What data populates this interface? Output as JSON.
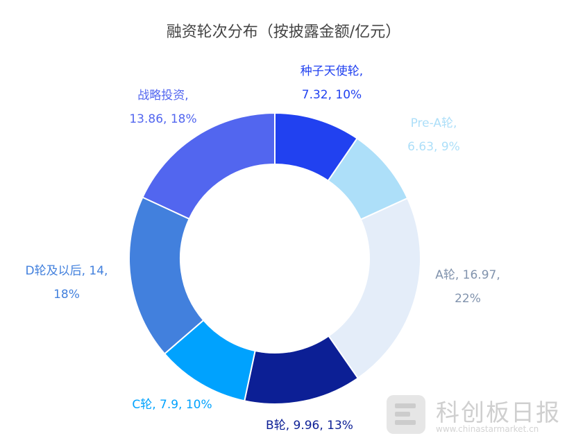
{
  "chart_data": {
    "type": "pie",
    "donut": true,
    "title": "融资轮次分布（按披露金额/亿元）",
    "slices": [
      {
        "name": "种子天使轮",
        "value": 7.32,
        "pct": "10%",
        "color": "#2141f0",
        "label_lines": [
          "种子天使轮,",
          "7.32, 10%"
        ]
      },
      {
        "name": "Pre-A轮",
        "value": 6.63,
        "pct": "9%",
        "color": "#addff9",
        "label_lines": [
          "Pre-A轮,",
          "6.63, 9%"
        ]
      },
      {
        "name": "A轮",
        "value": 16.97,
        "pct": "22%",
        "color": "#e4edf9",
        "label_color": "#8193ad",
        "label_lines": [
          "A轮, 16.97,",
          "22%"
        ]
      },
      {
        "name": "B轮",
        "value": 9.96,
        "pct": "13%",
        "color": "#0c1f95",
        "label_lines": [
          "B轮, 9.96, 13%"
        ]
      },
      {
        "name": "C轮",
        "value": 7.9,
        "pct": "10%",
        "color": "#00a2fe",
        "label_lines": [
          "C轮, 7.9, 10%"
        ]
      },
      {
        "name": "D轮及以后",
        "value": 14,
        "pct": "18%",
        "color": "#4280dd",
        "label_lines": [
          "D轮及以后, 14,",
          "18%"
        ]
      },
      {
        "name": "战略投资",
        "value": 13.86,
        "pct": "18%",
        "color": "#5266ef",
        "label_lines": [
          "战略投资,",
          "13.86, 18%"
        ]
      }
    ]
  },
  "watermark": {
    "brand": "科创板日报",
    "url": "www.chinastarmarket.cn"
  }
}
